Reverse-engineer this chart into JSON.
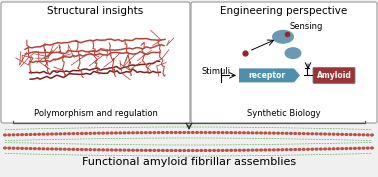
{
  "title": "Functional amyloid fibrillar assemblies",
  "left_box_title": "Structural insights",
  "left_box_subtitle": "Polymorphism and regulation",
  "right_box_title": "Engineering perspective",
  "right_box_label_sensing": "Sensing",
  "right_box_label_stimuli": "Stimuli",
  "right_box_label_synbio": "Synthetic Biology",
  "receptor_label": "receptor",
  "amyloid_label": "Amyloid",
  "bg_color": "#f0f0f0",
  "box_edge_color": "#999999",
  "fibril_red": "#b5433a",
  "fibril_green": "#5aaa5a",
  "receptor_fill": "#4d8fac",
  "amyloid_fill": "#9a3535",
  "dot_dark": "#8a2a2a",
  "dot_blue": "#5a8faa",
  "arrow_color": "#444444",
  "figw": 3.78,
  "figh": 1.77,
  "dpi": 100
}
